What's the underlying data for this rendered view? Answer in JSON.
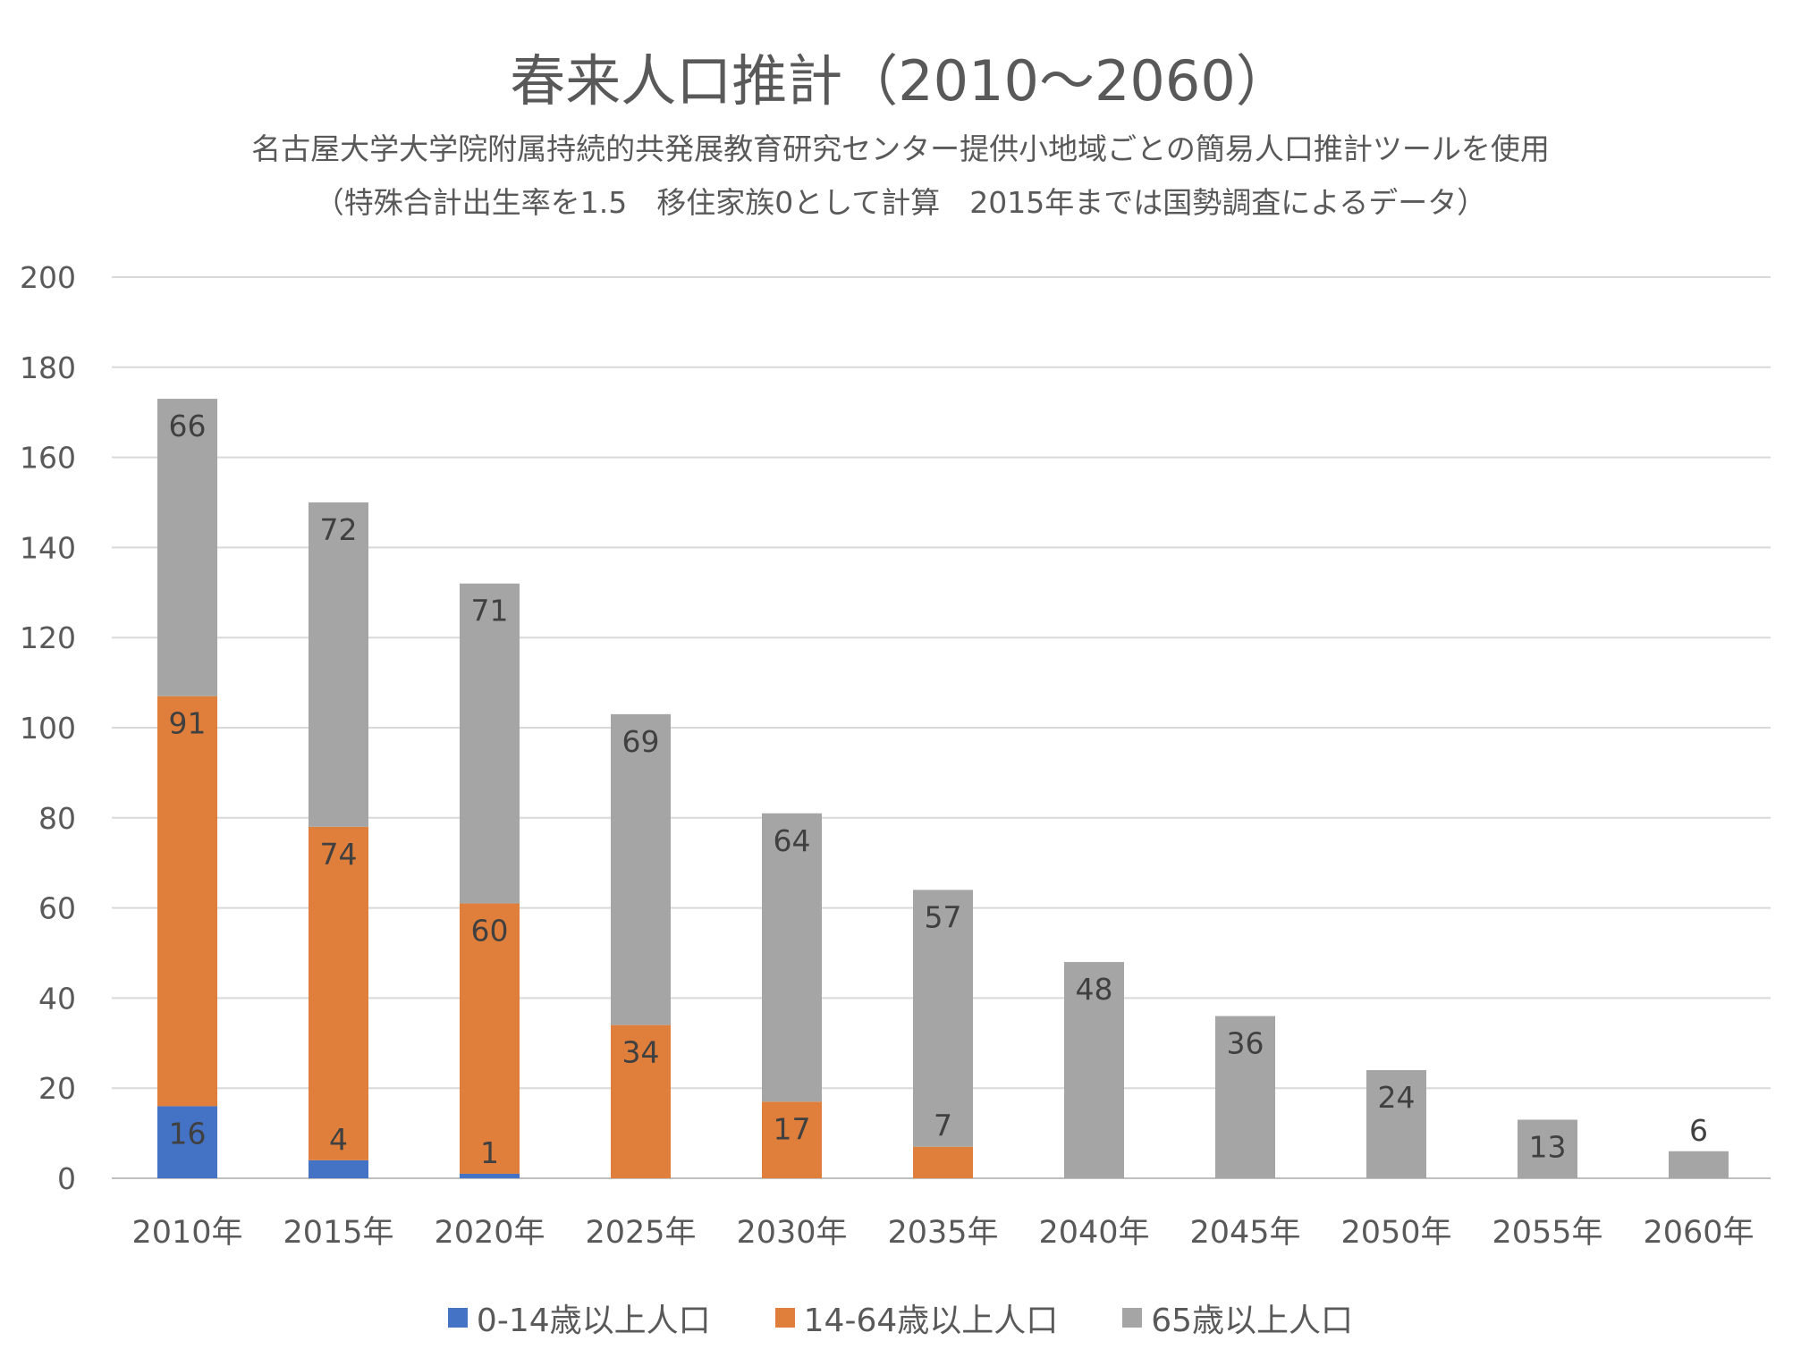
{
  "chart_data": {
    "type": "bar",
    "stacked": true,
    "title": "春来人口推計（2010〜2060）",
    "subtitle_lines": [
      "名古屋大学大学院附属持続的共発展教育研究センター提供小地域ごとの簡易人口推計ツールを使用",
      "（特殊合計出生率を1.5　移住家族0として計算　2015年までは国勢調査によるデータ）"
    ],
    "categories": [
      "2010年",
      "2015年",
      "2020年",
      "2025年",
      "2030年",
      "2035年",
      "2040年",
      "2045年",
      "2050年",
      "2055年",
      "2060年"
    ],
    "series": [
      {
        "name": "0-14歳以上人口",
        "color": "#4472C4",
        "values": [
          16,
          4,
          1,
          0,
          0,
          0,
          0,
          0,
          0,
          0,
          0
        ]
      },
      {
        "name": "14-64歳以上人口",
        "color": "#E07F3C",
        "values": [
          91,
          74,
          60,
          34,
          17,
          7,
          0,
          0,
          0,
          0,
          0
        ]
      },
      {
        "name": "65歳以上人口",
        "color": "#A5A5A5",
        "values": [
          66,
          72,
          71,
          69,
          64,
          57,
          48,
          36,
          24,
          13,
          6
        ]
      }
    ],
    "ylim": [
      0,
      200
    ],
    "yticks": [
      0,
      20,
      40,
      60,
      80,
      100,
      120,
      140,
      160,
      180,
      200
    ],
    "grid": true,
    "legend_position": "bottom",
    "label_color": "#404040",
    "tick_color": "#595959",
    "grid_color": "#D9D9D9"
  }
}
